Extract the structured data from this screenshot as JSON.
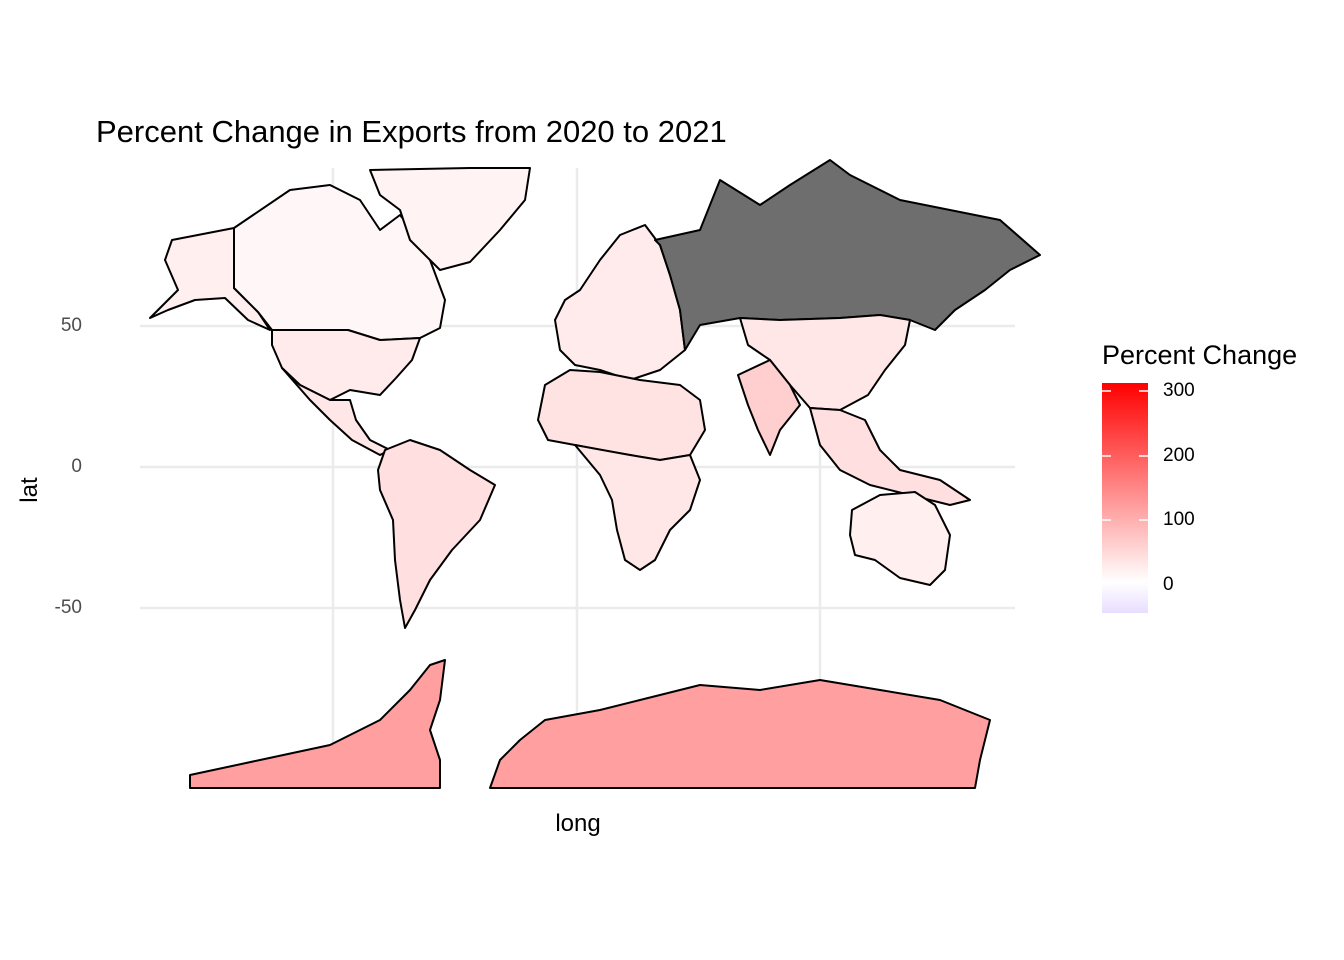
{
  "chart_data": {
    "type": "choropleth-map",
    "title": "Percent Change in Exports from 2020 to 2021",
    "xlabel": "long",
    "ylabel": "lat",
    "y_ticks": [
      "50",
      "0",
      "-50"
    ],
    "grid": true,
    "legend": {
      "title": "Percent Change",
      "position": "right",
      "ticks": [
        "300",
        "200",
        "100",
        "0"
      ],
      "range": [
        -50,
        320
      ],
      "colors": {
        "low": "#e9ddff",
        "mid": "#ffffff",
        "high": "#ff0000"
      },
      "missing_color": "#6e6e6e"
    },
    "regions": [
      {
        "name": "Canada",
        "value": 10
      },
      {
        "name": "Greenland",
        "value": 15
      },
      {
        "name": "Alaska",
        "value": 20
      },
      {
        "name": "United States",
        "value": 25
      },
      {
        "name": "Mexico",
        "value": 30
      },
      {
        "name": "South America",
        "value": 40
      },
      {
        "name": "Europe",
        "value": 25
      },
      {
        "name": "North Africa",
        "value": 35
      },
      {
        "name": "Southern Africa",
        "value": 30
      },
      {
        "name": "Russia",
        "value": null
      },
      {
        "name": "China",
        "value": 30
      },
      {
        "name": "India",
        "value": 60
      },
      {
        "name": "Southeast Asia",
        "value": 40
      },
      {
        "name": "Australia",
        "value": 20
      },
      {
        "name": "Antarctica",
        "value": 120
      }
    ]
  }
}
